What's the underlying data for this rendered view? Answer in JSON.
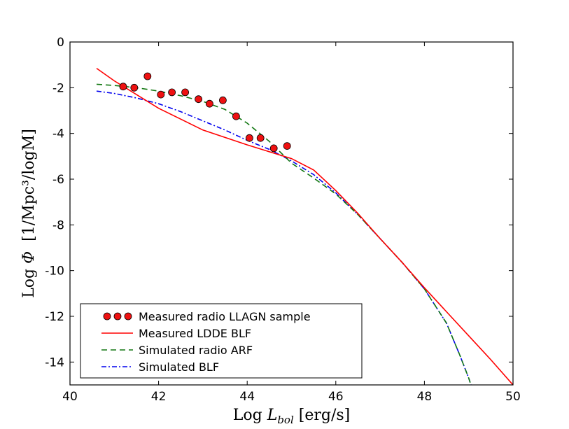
{
  "chart_data": {
    "type": "line",
    "title": "",
    "xlabel": "Log L_bol [erg/s]",
    "xlabel_parts": {
      "prefix": "Log ",
      "symbol": "L",
      "subscript": "bol",
      "suffix": " [erg/s]"
    },
    "ylabel": "Log Φ  [1/Mpc³/logM]",
    "ylabel_parts": {
      "prefix": "Log ",
      "symbol": "Φ",
      "suffix": "  [1/Mpc³/logM]"
    },
    "xlim": [
      40,
      50
    ],
    "ylim": [
      -15,
      0
    ],
    "xticks": [
      40,
      42,
      44,
      46,
      48,
      50
    ],
    "yticks": [
      0,
      -2,
      -4,
      -6,
      -8,
      -10,
      -12,
      -14
    ],
    "grid": false,
    "legend_position": "lower-left",
    "series": [
      {
        "name": "Measured radio LLAGN sample",
        "kind": "scatter",
        "color": "#ee1111",
        "x": [
          41.2,
          41.45,
          41.75,
          42.05,
          42.3,
          42.6,
          42.9,
          43.15,
          43.45,
          43.75,
          44.05,
          44.3,
          44.6,
          44.9
        ],
        "y": [
          -1.95,
          -2.0,
          -1.5,
          -2.3,
          -2.2,
          -2.2,
          -2.5,
          -2.7,
          -2.55,
          -3.25,
          -4.2,
          -4.2,
          -4.65,
          -4.55
        ]
      },
      {
        "name": "Measured LDDE BLF",
        "kind": "line",
        "dash": "solid",
        "color": "#ff0000",
        "x": [
          40.6,
          41,
          42,
          43,
          44,
          45,
          45.5,
          46,
          46.5,
          47,
          47.5,
          48,
          48.5,
          49,
          49.5,
          50
        ],
        "y": [
          -1.15,
          -1.7,
          -2.9,
          -3.85,
          -4.5,
          -5.1,
          -5.6,
          -6.5,
          -7.5,
          -8.6,
          -9.65,
          -10.75,
          -11.8,
          -12.85,
          -13.9,
          -15.0
        ]
      },
      {
        "name": "Simulated radio ARF",
        "kind": "line",
        "dash": "dashed",
        "color": "#117711",
        "x": [
          40.6,
          41,
          41.5,
          42,
          42.5,
          43,
          43.5,
          44,
          44.5,
          45,
          45.5,
          46,
          46.5,
          47,
          47.5,
          48,
          48.5,
          48.8,
          49.0,
          49.05
        ],
        "y": [
          -1.85,
          -1.9,
          -2.0,
          -2.15,
          -2.35,
          -2.6,
          -2.95,
          -3.55,
          -4.35,
          -5.3,
          -5.95,
          -6.65,
          -7.55,
          -8.6,
          -9.65,
          -10.8,
          -12.3,
          -13.7,
          -14.7,
          -15.0
        ]
      },
      {
        "name": "Simulated BLF",
        "kind": "line",
        "dash": "dashdot",
        "color": "#0000ee",
        "x": [
          40.6,
          41,
          41.5,
          42,
          42.5,
          43,
          43.5,
          44,
          44.5,
          45,
          45.5,
          46,
          46.5,
          47,
          47.5,
          48,
          48.5,
          48.8,
          49.0,
          49.05
        ],
        "y": [
          -2.15,
          -2.25,
          -2.45,
          -2.7,
          -3.05,
          -3.45,
          -3.85,
          -4.3,
          -4.7,
          -5.2,
          -5.8,
          -6.6,
          -7.55,
          -8.6,
          -9.65,
          -10.8,
          -12.3,
          -13.7,
          -14.7,
          -15.0
        ]
      }
    ]
  }
}
